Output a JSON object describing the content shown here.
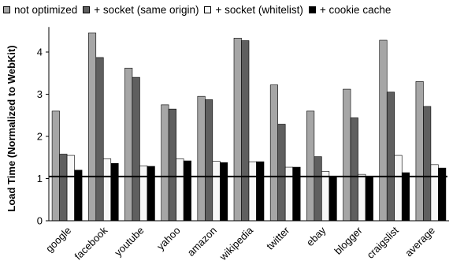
{
  "chart_data": {
    "type": "bar",
    "ylabel": "Load Time (Normalized to WebKit)",
    "xlabel": "",
    "ylim": [
      0,
      4.5
    ],
    "yticks": [
      "0",
      "1",
      "2",
      "3",
      "4"
    ],
    "reference_line": 1.05,
    "grid": false,
    "legend_position": "top",
    "categories": [
      "google",
      "facebook",
      "youtube",
      "yahoo",
      "amazon",
      "wikipedia",
      "twitter",
      "ebay",
      "blogger",
      "craigslist",
      "average"
    ],
    "series": [
      {
        "name": "not optimized",
        "color": "#a6a6a6",
        "values": [
          2.6,
          4.45,
          3.62,
          2.75,
          2.95,
          4.33,
          3.22,
          2.6,
          3.12,
          4.28,
          3.3
        ]
      },
      {
        "name": "+ socket (same origin)",
        "color": "#5f5f5f",
        "values": [
          1.58,
          3.87,
          3.4,
          2.65,
          2.87,
          4.27,
          2.29,
          1.52,
          2.44,
          3.05,
          2.71
        ]
      },
      {
        "name": "+ socket (whitelist)",
        "color": "#f7f7f7",
        "values": [
          1.55,
          1.47,
          1.3,
          1.47,
          1.41,
          1.4,
          1.27,
          1.17,
          1.1,
          1.55,
          1.33
        ]
      },
      {
        "name": "+ cookie cache",
        "color": "#000000",
        "values": [
          1.2,
          1.36,
          1.29,
          1.42,
          1.38,
          1.4,
          1.27,
          1.06,
          1.04,
          1.14,
          1.25
        ]
      }
    ]
  }
}
